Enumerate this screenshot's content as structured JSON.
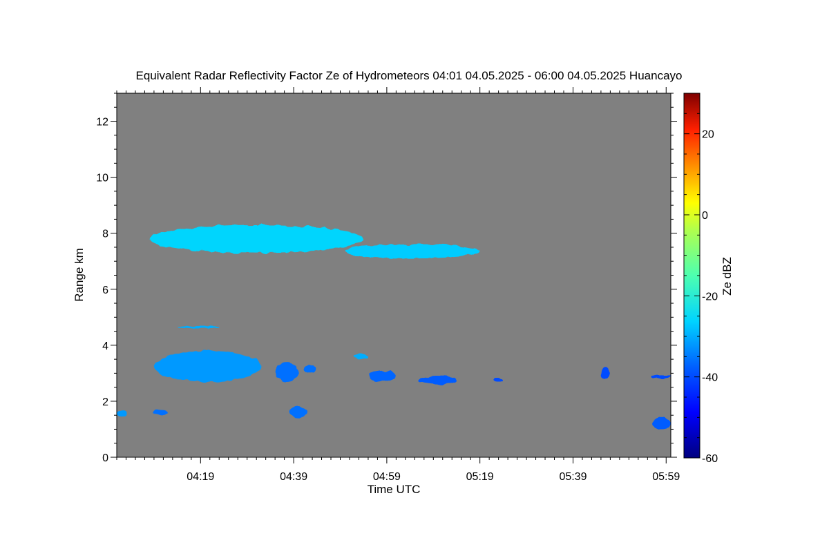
{
  "chart_data": {
    "type": "heatmap",
    "title": "Equivalent Radar Reflectivity Factor Ze of Hydrometeors   04:01 04.05.2025 - 06:00 04.05.2025 Huancayo",
    "xlabel": "Time UTC",
    "ylabel": "Range km",
    "x_tick_labels": [
      "04:19",
      "04:39",
      "04:59",
      "05:19",
      "05:39",
      "05:59"
    ],
    "x_range_minutes_utc": [
      241,
      360
    ],
    "x_major_ticks_minutes": [
      259,
      279,
      299,
      319,
      339,
      359
    ],
    "y_ticks": [
      0,
      2,
      4,
      6,
      8,
      10,
      12
    ],
    "ylim": [
      0,
      13
    ],
    "colorbar": {
      "label": "Ze dBZ",
      "range": [
        -60,
        30
      ],
      "ticks": [
        -60,
        -40,
        -20,
        0,
        20
      ]
    },
    "background_color": "#808080",
    "echo_regions": [
      {
        "name": "upper cloud layer main",
        "t_start": 248,
        "t_end": 294,
        "z_bottom": 7.3,
        "z_top": 8.3,
        "ze": -26
      },
      {
        "name": "upper cloud layer tail",
        "t_start": 290,
        "t_end": 319,
        "z_bottom": 7.1,
        "z_top": 7.6,
        "ze": -27
      },
      {
        "name": "thin layer 4.6 km",
        "t_start": 254,
        "t_end": 263,
        "z_bottom": 4.6,
        "z_top": 4.7,
        "ze": -30
      },
      {
        "name": "low cloud main",
        "t_start": 249,
        "t_end": 272,
        "z_bottom": 2.7,
        "z_top": 3.8,
        "ze": -32
      },
      {
        "name": "low cloud patch",
        "t_start": 275,
        "t_end": 280,
        "z_bottom": 2.7,
        "z_top": 3.4,
        "ze": -36
      },
      {
        "name": "low cloud patch",
        "t_start": 281,
        "t_end": 284,
        "z_bottom": 3.0,
        "z_top": 3.3,
        "ze": -36
      },
      {
        "name": "low cloud patch",
        "t_start": 292,
        "t_end": 295,
        "z_bottom": 3.5,
        "z_top": 3.7,
        "ze": -30
      },
      {
        "name": "low cloud patch",
        "t_start": 295,
        "t_end": 301,
        "z_bottom": 2.7,
        "z_top": 3.1,
        "ze": -37
      },
      {
        "name": "low cloud patch",
        "t_start": 306,
        "t_end": 314,
        "z_bottom": 2.6,
        "z_top": 2.9,
        "ze": -38
      },
      {
        "name": "surface echo",
        "t_start": 241,
        "t_end": 243,
        "z_bottom": 1.4,
        "z_top": 1.7,
        "ze": -32
      },
      {
        "name": "surface echo",
        "t_start": 249,
        "t_end": 252,
        "z_bottom": 1.5,
        "z_top": 1.7,
        "ze": -36
      },
      {
        "name": "surface echo",
        "t_start": 278,
        "t_end": 282,
        "z_bottom": 1.4,
        "z_top": 1.8,
        "ze": -36
      },
      {
        "name": "surface echo late",
        "t_start": 356,
        "t_end": 360,
        "z_bottom": 1.0,
        "z_top": 1.4,
        "ze": -38
      },
      {
        "name": "small echo",
        "t_start": 345,
        "t_end": 347,
        "z_bottom": 2.8,
        "z_top": 3.2,
        "ze": -40
      },
      {
        "name": "small echo",
        "t_start": 356,
        "t_end": 360,
        "z_bottom": 2.8,
        "z_top": 2.95,
        "ze": -40
      },
      {
        "name": "small echo",
        "t_start": 322,
        "t_end": 324,
        "z_bottom": 2.7,
        "z_top": 2.8,
        "ze": -40
      }
    ]
  }
}
